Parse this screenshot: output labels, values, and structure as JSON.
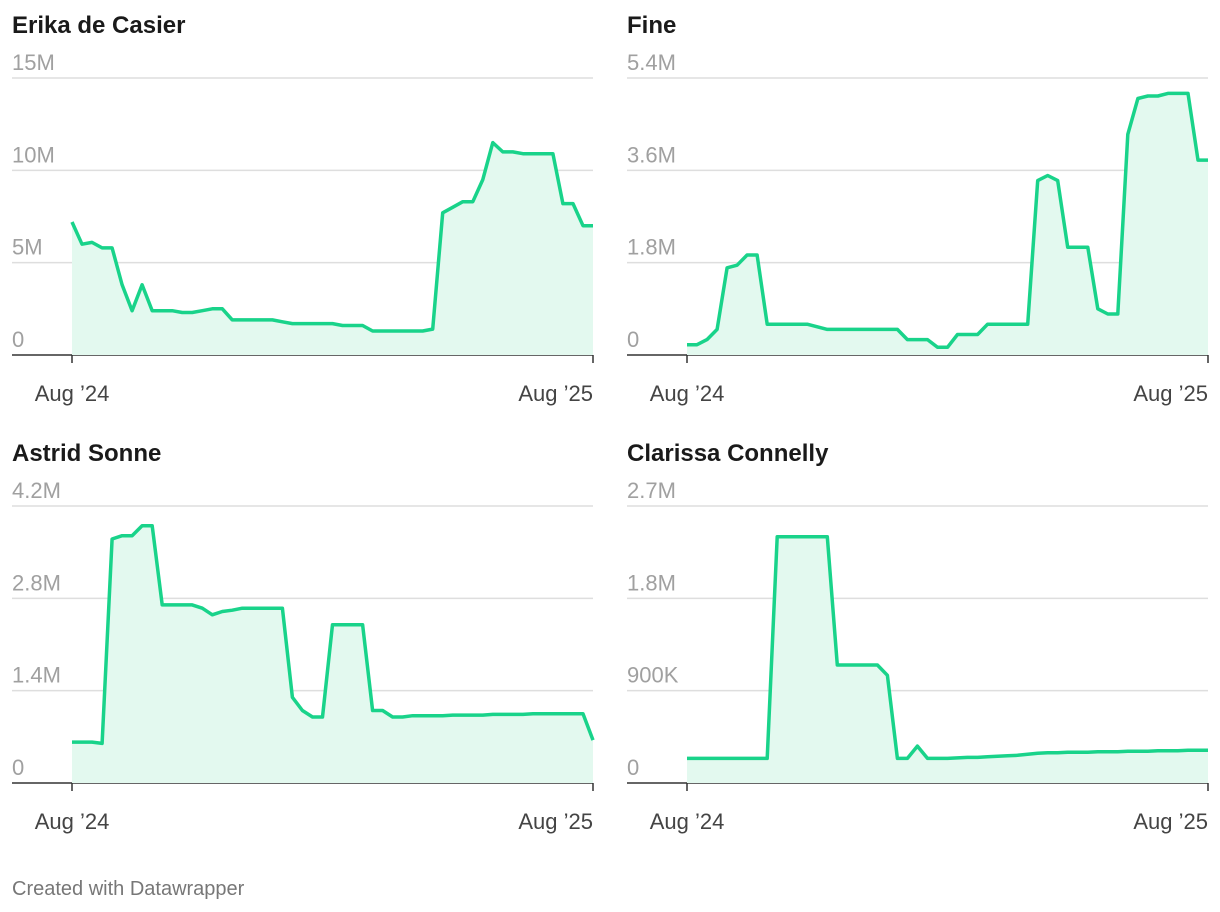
{
  "chart_data": [
    {
      "type": "line",
      "title": "Erika de Casier",
      "color": "#19d38a",
      "fill": "#e3f9ef",
      "categories": [
        "Aug ’24",
        null,
        null,
        null,
        null,
        null,
        null,
        null,
        null,
        null,
        null,
        null,
        null,
        null,
        null,
        null,
        null,
        null,
        null,
        null,
        null,
        null,
        null,
        null,
        null,
        null,
        null,
        null,
        null,
        null,
        null,
        null,
        null,
        null,
        null,
        null,
        null,
        null,
        null,
        null,
        null,
        null,
        null,
        null,
        null,
        null,
        null,
        null,
        null,
        null,
        null,
        null,
        "Aug ’25"
      ],
      "values": [
        7200000,
        6000000,
        6100000,
        5800000,
        5800000,
        3800000,
        2400000,
        3800000,
        2400000,
        2400000,
        2400000,
        2300000,
        2300000,
        2400000,
        2500000,
        2500000,
        1900000,
        1900000,
        1900000,
        1900000,
        1900000,
        1800000,
        1700000,
        1700000,
        1700000,
        1700000,
        1700000,
        1600000,
        1600000,
        1600000,
        1300000,
        1300000,
        1300000,
        1300000,
        1300000,
        1300000,
        1400000,
        7700000,
        8000000,
        8300000,
        8300000,
        9500000,
        11500000,
        11000000,
        11000000,
        10900000,
        10900000,
        10900000,
        10900000,
        8200000,
        8200000,
        7000000,
        7000000
      ],
      "ylim": [
        0,
        15000000
      ],
      "yticks": [
        0,
        {
          "value": 5000000,
          "label": "5M"
        },
        {
          "value": 10000000,
          "label": "10M"
        },
        {
          "value": 15000000,
          "label": "15M"
        }
      ],
      "grid": true
    },
    {
      "type": "line",
      "title": "Fine",
      "color": "#19d38a",
      "fill": "#e3f9ef",
      "categories": [
        "Aug ’24",
        null,
        null,
        null,
        null,
        null,
        null,
        null,
        null,
        null,
        null,
        null,
        null,
        null,
        null,
        null,
        null,
        null,
        null,
        null,
        null,
        null,
        null,
        null,
        null,
        null,
        null,
        null,
        null,
        null,
        null,
        null,
        null,
        null,
        null,
        null,
        null,
        null,
        null,
        null,
        null,
        null,
        null,
        null,
        null,
        null,
        null,
        null,
        null,
        null,
        null,
        null,
        "Aug ’25"
      ],
      "values": [
        200000,
        200000,
        300000,
        500000,
        1700000,
        1750000,
        1950000,
        1950000,
        600000,
        600000,
        600000,
        600000,
        600000,
        550000,
        500000,
        500000,
        500000,
        500000,
        500000,
        500000,
        500000,
        500000,
        300000,
        300000,
        300000,
        150000,
        150000,
        400000,
        400000,
        400000,
        600000,
        600000,
        600000,
        600000,
        600000,
        3400000,
        3500000,
        3400000,
        2100000,
        2100000,
        2100000,
        900000,
        800000,
        800000,
        4300000,
        5000000,
        5050000,
        5050000,
        5100000,
        5100000,
        5100000,
        3800000,
        3800000
      ],
      "ylim": [
        0,
        5400000
      ],
      "yticks": [
        0,
        {
          "value": 1800000,
          "label": "1.8M"
        },
        {
          "value": 3600000,
          "label": "3.6M"
        },
        {
          "value": 5400000,
          "label": "5.4M"
        }
      ],
      "grid": true
    },
    {
      "type": "line",
      "title": "Astrid Sonne",
      "color": "#19d38a",
      "fill": "#e3f9ef",
      "categories": [
        "Aug ’24",
        null,
        null,
        null,
        null,
        null,
        null,
        null,
        null,
        null,
        null,
        null,
        null,
        null,
        null,
        null,
        null,
        null,
        null,
        null,
        null,
        null,
        null,
        null,
        null,
        null,
        null,
        null,
        null,
        null,
        null,
        null,
        null,
        null,
        null,
        null,
        null,
        null,
        null,
        null,
        null,
        null,
        null,
        null,
        null,
        null,
        null,
        null,
        null,
        null,
        null,
        null,
        "Aug ’25"
      ],
      "values": [
        620000,
        620000,
        620000,
        600000,
        3700000,
        3750000,
        3750000,
        3900000,
        3900000,
        2700000,
        2700000,
        2700000,
        2700000,
        2650000,
        2550000,
        2600000,
        2620000,
        2650000,
        2650000,
        2650000,
        2650000,
        2650000,
        1300000,
        1100000,
        1000000,
        1000000,
        2400000,
        2400000,
        2400000,
        2400000,
        1100000,
        1100000,
        1000000,
        1000000,
        1020000,
        1020000,
        1020000,
        1020000,
        1030000,
        1030000,
        1030000,
        1030000,
        1040000,
        1040000,
        1040000,
        1040000,
        1050000,
        1050000,
        1050000,
        1050000,
        1050000,
        1050000,
        650000
      ],
      "ylim": [
        0,
        4200000
      ],
      "yticks": [
        0,
        {
          "value": 1400000,
          "label": "1.4M"
        },
        {
          "value": 2800000,
          "label": "2.8M"
        },
        {
          "value": 4200000,
          "label": "4.2M"
        }
      ],
      "grid": true
    },
    {
      "type": "line",
      "title": "Clarissa Connelly",
      "color": "#19d38a",
      "fill": "#e3f9ef",
      "categories": [
        "Aug ’24",
        null,
        null,
        null,
        null,
        null,
        null,
        null,
        null,
        null,
        null,
        null,
        null,
        null,
        null,
        null,
        null,
        null,
        null,
        null,
        null,
        null,
        null,
        null,
        null,
        null,
        null,
        null,
        null,
        null,
        null,
        null,
        null,
        null,
        null,
        null,
        null,
        null,
        null,
        null,
        null,
        null,
        null,
        null,
        null,
        null,
        null,
        null,
        null,
        null,
        null,
        null,
        "Aug ’25"
      ],
      "values": [
        240000,
        240000,
        240000,
        240000,
        240000,
        240000,
        240000,
        240000,
        240000,
        2400000,
        2400000,
        2400000,
        2400000,
        2400000,
        2400000,
        1150000,
        1150000,
        1150000,
        1150000,
        1150000,
        1050000,
        240000,
        240000,
        360000,
        240000,
        240000,
        240000,
        245000,
        250000,
        250000,
        255000,
        260000,
        265000,
        270000,
        280000,
        290000,
        295000,
        295000,
        300000,
        300000,
        300000,
        305000,
        305000,
        305000,
        310000,
        310000,
        310000,
        315000,
        315000,
        315000,
        320000,
        320000,
        320000
      ],
      "ylim": [
        0,
        2700000
      ],
      "yticks": [
        0,
        {
          "value": 900000,
          "label": "900K"
        },
        {
          "value": 1800000,
          "label": "1.8M"
        },
        {
          "value": 2700000,
          "label": "2.7M"
        }
      ],
      "grid": true
    }
  ],
  "footer": "Created with Datawrapper"
}
